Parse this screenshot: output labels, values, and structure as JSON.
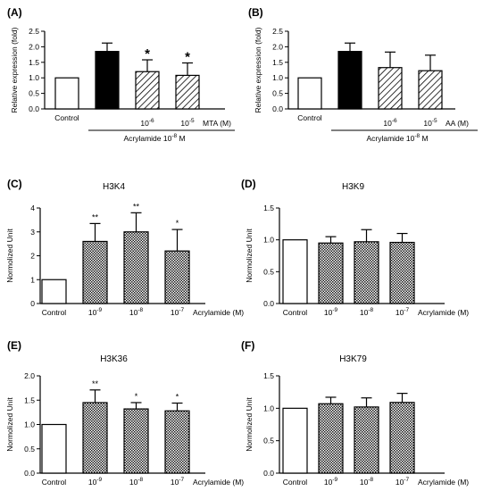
{
  "chart_data": [
    {
      "panel": "(A)",
      "type": "bar",
      "title": "",
      "ylabel": "Relative expression (fold)",
      "ylim": [
        0,
        2.5
      ],
      "yticks": [
        0,
        0.5,
        1.0,
        1.5,
        2.0,
        2.5
      ],
      "ytick_labels": [
        "0.0",
        "0.5",
        "1.0",
        "1.5",
        "2.0",
        "2.5"
      ],
      "categories": [
        "Control",
        "",
        "10-6",
        "10-5"
      ],
      "values": [
        1.0,
        1.85,
        1.2,
        1.08
      ],
      "errors": [
        0,
        0.27,
        0.38,
        0.4
      ],
      "significance": [
        "",
        "",
        "*",
        "*"
      ],
      "fills": [
        "white",
        "black",
        "hatch",
        "hatch"
      ],
      "axis_unit_label": "MTA (M)",
      "group_label": "Acrylamide 10-8 M"
    },
    {
      "panel": "(B)",
      "type": "bar",
      "title": "",
      "ylabel": "Relative expression (fold)",
      "ylim": [
        0,
        2.5
      ],
      "yticks": [
        0,
        0.5,
        1.0,
        1.5,
        2.0,
        2.5
      ],
      "ytick_labels": [
        "0.0",
        "0.5",
        "1.0",
        "1.5",
        "2.0",
        "2.5"
      ],
      "categories": [
        "Control",
        "",
        "10-6",
        "10-5"
      ],
      "values": [
        1.0,
        1.85,
        1.33,
        1.23
      ],
      "errors": [
        0,
        0.27,
        0.5,
        0.5
      ],
      "significance": [
        "",
        "",
        "",
        ""
      ],
      "fills": [
        "white",
        "black",
        "hatch",
        "hatch"
      ],
      "axis_unit_label": "AA (M)",
      "group_label": "Acrylamide 10-8 M"
    },
    {
      "panel": "(C)",
      "type": "bar",
      "title": "H3K4",
      "ylabel": "Normolized Unit",
      "ylim": [
        0,
        4
      ],
      "yticks": [
        0,
        1,
        2,
        3,
        4
      ],
      "ytick_labels": [
        "0",
        "1",
        "2",
        "3",
        "4"
      ],
      "categories": [
        "Control",
        "10-9",
        "10-8",
        "10-7"
      ],
      "values": [
        1.0,
        2.6,
        3.0,
        2.2
      ],
      "errors": [
        0,
        0.75,
        0.8,
        0.9
      ],
      "significance": [
        "",
        "**",
        "**",
        "*"
      ],
      "fills": [
        "white",
        "check",
        "check",
        "check"
      ],
      "axis_unit_label": "Acrylamide (M)"
    },
    {
      "panel": "(D)",
      "type": "bar",
      "title": "H3K9",
      "ylabel": "Normolized Unit",
      "ylim": [
        0,
        1.5
      ],
      "yticks": [
        0,
        0.5,
        1.0,
        1.5
      ],
      "ytick_labels": [
        "0.0",
        "0.5",
        "1.0",
        "1.5"
      ],
      "categories": [
        "Control",
        "10-9",
        "10-8",
        "10-7"
      ],
      "values": [
        1.0,
        0.95,
        0.97,
        0.96
      ],
      "errors": [
        0,
        0.1,
        0.19,
        0.14
      ],
      "significance": [
        "",
        "",
        "",
        ""
      ],
      "fills": [
        "white",
        "check",
        "check",
        "check"
      ],
      "axis_unit_label": "Acrylamide (M)"
    },
    {
      "panel": "(E)",
      "type": "bar",
      "title": "H3K36",
      "ylabel": "Normolized Unit",
      "ylim": [
        0,
        2.0
      ],
      "yticks": [
        0,
        0.5,
        1.0,
        1.5,
        2.0
      ],
      "ytick_labels": [
        "0.0",
        "0.5",
        "1.0",
        "1.5",
        "2.0"
      ],
      "categories": [
        "Control",
        "10-9",
        "10-8",
        "10-7"
      ],
      "values": [
        1.0,
        1.45,
        1.32,
        1.28
      ],
      "errors": [
        0,
        0.26,
        0.13,
        0.16
      ],
      "significance": [
        "",
        "**",
        "*",
        "*"
      ],
      "fills": [
        "white",
        "check",
        "check",
        "check"
      ],
      "axis_unit_label": "Acrylamide (M)"
    },
    {
      "panel": "(F)",
      "type": "bar",
      "title": "H3K79",
      "ylabel": "Normolized Unit",
      "ylim": [
        0,
        1.5
      ],
      "yticks": [
        0,
        0.5,
        1.0,
        1.5
      ],
      "ytick_labels": [
        "0.0",
        "0.5",
        "1.0",
        "1.5"
      ],
      "categories": [
        "Control",
        "10-9",
        "10-8",
        "10-7"
      ],
      "values": [
        1.0,
        1.07,
        1.02,
        1.09
      ],
      "errors": [
        0,
        0.1,
        0.14,
        0.14
      ],
      "significance": [
        "",
        "",
        "",
        ""
      ],
      "fills": [
        "white",
        "check",
        "check",
        "check"
      ],
      "axis_unit_label": "Acrylamide (M)"
    }
  ]
}
